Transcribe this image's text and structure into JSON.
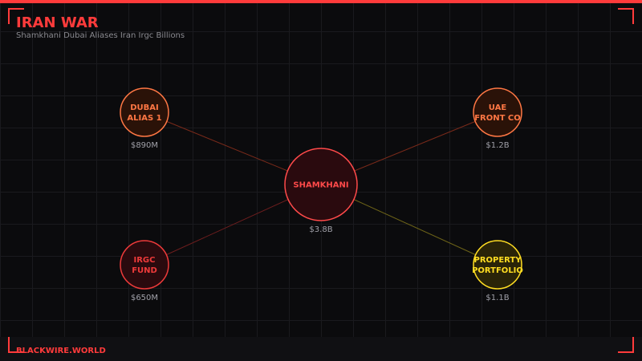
{
  "header": {
    "title": "IRAN WAR",
    "subtitle": "Shamkhani Dubai Aliases Iran Irgc Billions"
  },
  "footer": {
    "brand": "BLACKWIRE.WORLD"
  },
  "diagram": {
    "center": {
      "id": "shamkhani",
      "lines": [
        "SHAMKHANI"
      ],
      "value": "$3.8B",
      "color": "#ff4a4a",
      "fill": "#2a0a0e"
    },
    "nodes": [
      {
        "id": "dubai-alias-1",
        "lines": [
          "DUBAI",
          "ALIAS 1"
        ],
        "value": "$890M",
        "color": "#ff7744",
        "fill": "#2a1208",
        "edge": "#7a2a1a"
      },
      {
        "id": "uae-front-co",
        "lines": [
          "UAE",
          "FRONT CO"
        ],
        "value": "$1.2B",
        "color": "#ff7744",
        "fill": "#2a1208",
        "edge": "#7a2a1a"
      },
      {
        "id": "irgc-fund",
        "lines": [
          "IRGC",
          "FUND"
        ],
        "value": "$650M",
        "color": "#ee3a3a",
        "fill": "#2a0a0e",
        "edge": "#6e1e1e"
      },
      {
        "id": "property-portfolio",
        "lines": [
          "PROPERTY",
          "PORTFOLIO"
        ],
        "value": "$1.1B",
        "color": "#ffdd22",
        "fill": "#2a2408",
        "edge": "#6e6418"
      }
    ]
  }
}
